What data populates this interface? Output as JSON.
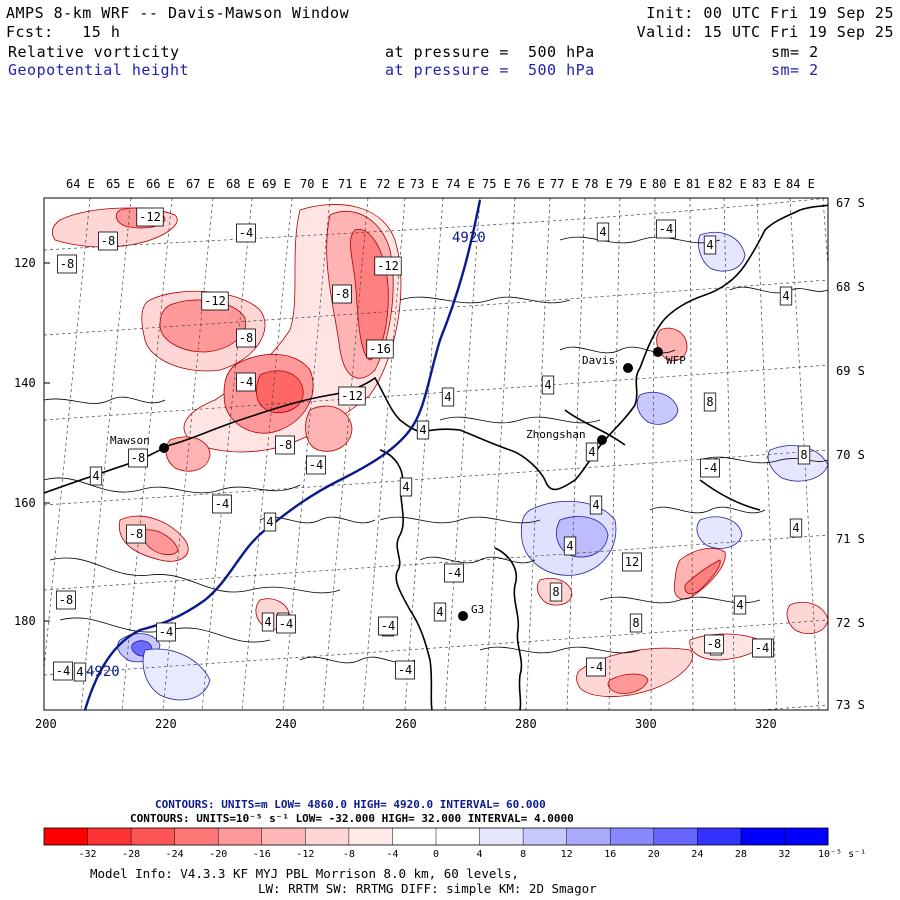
{
  "header": {
    "title": "AMPS 8-km WRF -- Davis-Mawson Window",
    "init": "Init: 00 UTC Fri 19 Sep 25",
    "fcst": "Fcst:   15 h",
    "valid": "Valid: 15 UTC Fri 19 Sep 25",
    "field1": "Relative vorticity",
    "field1_level": "at pressure =  500 hPa",
    "field1_sm": "sm= 2",
    "field2": "Geopotential height",
    "field2_level": "at pressure =  500 hPa",
    "field2_sm": "sm= 2"
  },
  "top_lon_labels": [
    "64 E",
    "65 E",
    "66 E",
    "67 E",
    "68 E",
    "69 E",
    "70 E",
    "71 E",
    "72 E",
    "73 E",
    "74 E",
    "75 E",
    "76 E",
    "77 E",
    "78 E",
    "79 E",
    "80 E",
    "81 E",
    "82 E",
    "83 E",
    "84 E"
  ],
  "right_lat_labels": [
    "67 S",
    "68 S",
    "69 S",
    "70 S",
    "71 S",
    "72 S",
    "73 S"
  ],
  "left_y_ticks": [
    "120",
    "140",
    "160",
    "180"
  ],
  "bottom_x_ticks": [
    "200",
    "220",
    "240",
    "260",
    "280",
    "300",
    "320"
  ],
  "stations": [
    {
      "name": "Mawson"
    },
    {
      "name": "Davis"
    },
    {
      "name": "WFP"
    },
    {
      "name": "Zhongshan"
    },
    {
      "name": "G3"
    }
  ],
  "height_labels": [
    "4920",
    "4920"
  ],
  "vort_labels": [
    "-12",
    "-8",
    "-4",
    "-8",
    "-12",
    "-8",
    "-12",
    "-8",
    "-16",
    "-4",
    "-12",
    "-8",
    "-4",
    "-8",
    "-4",
    "4",
    "4",
    "4",
    "-8",
    "-4",
    "4",
    "4",
    "4",
    "4",
    "-4",
    "4",
    "4",
    "8",
    "-4",
    "8",
    "4",
    "4",
    "4",
    "12",
    "8",
    "-4",
    "4",
    "4",
    "4",
    "-4",
    "4",
    "8",
    "-4",
    "4",
    "-8",
    "-4",
    "4",
    "-4",
    "4",
    "4",
    "-4",
    "-4",
    "-8",
    "-4"
  ],
  "legend": {
    "contour1": "CONTOURS:  UNITS=m  LOW=   4860.0      HIGH=  4920.0      INTERVAL=   60.000",
    "contour2": "CONTOURS:  UNITS=10⁻⁵ s⁻¹   LOW=  -32.000       HIGH=  32.000     INTERVAL=   4.0000",
    "colorbar_ticks": [
      "-32",
      "-28",
      "-24",
      "-20",
      "-16",
      "-12",
      "-8",
      "-4",
      "0",
      "4",
      "8",
      "12",
      "16",
      "20",
      "24",
      "28",
      "32"
    ],
    "colorbar_unit": "10⁻⁵ s⁻¹",
    "colors": [
      "#ff0000",
      "#ff3333",
      "#ff5555",
      "#ff7777",
      "#ff9999",
      "#ffb8b8",
      "#ffd6d6",
      "#ffeaea",
      "#ffffff",
      "#ffffff",
      "#e6e6ff",
      "#c8c8ff",
      "#aaaaff",
      "#8888ff",
      "#6666ff",
      "#3333ff",
      "#0000ff"
    ]
  },
  "footer": {
    "line1": "Model Info: V4.3.3   KF      MYJ PBL  Morrison          8.0 km,  60 levels,",
    "line2": "LW: RRTM SW: RRTMG   DIFF: simple KM: 2D Smagor"
  }
}
